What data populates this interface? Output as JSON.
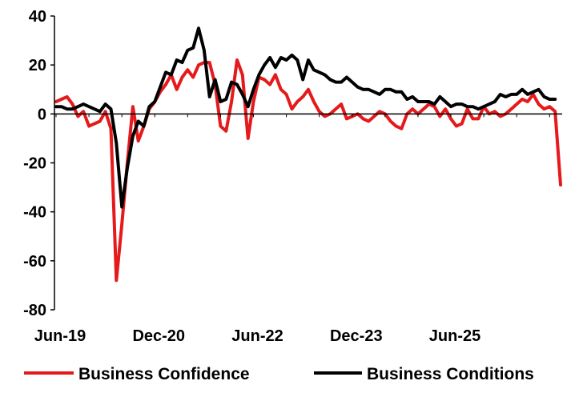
{
  "chart_data": {
    "type": "line",
    "title": "",
    "xlabel": "",
    "ylabel": "",
    "ylim": [
      -80,
      40
    ],
    "y_ticks": [
      40,
      20,
      0,
      -20,
      -40,
      -60,
      -80
    ],
    "y_tick_labels": [
      "40",
      "20",
      "0",
      "-20",
      "-40",
      "-60",
      "-80"
    ],
    "x_tick_labels": [
      "Jun-19",
      "Dec-20",
      "Jun-22",
      "Dec-23",
      "Jun-25"
    ],
    "x_tick_index": [
      0,
      18,
      36,
      54,
      72
    ],
    "grid": false,
    "legend_position": "bottom",
    "series": [
      {
        "name": "Business Confidence",
        "color": "#e41a1c",
        "values": [
          5,
          6,
          7,
          4,
          -1,
          1,
          -5,
          -4,
          -3,
          1,
          -6,
          -68,
          -45,
          -20,
          3,
          -11,
          -5,
          2,
          5,
          9,
          12,
          16,
          10,
          15,
          18,
          15,
          20,
          21,
          21,
          12,
          -5,
          -7,
          5,
          22,
          16,
          -10,
          5,
          15,
          14,
          12,
          16,
          10,
          8,
          2,
          5,
          7,
          10,
          5,
          1,
          -1,
          0,
          2,
          4,
          -2,
          -1,
          0,
          -2,
          -3,
          -1,
          1,
          0,
          -3,
          -5,
          -6,
          0,
          2,
          0,
          2,
          4,
          3,
          -1,
          2,
          -2,
          -5,
          -4,
          2,
          -2,
          -2,
          3,
          0,
          1,
          -1,
          0,
          2,
          4,
          6,
          5,
          8,
          4,
          2,
          3,
          1,
          -29
        ]
      },
      {
        "name": "Business Conditions",
        "color": "#000000",
        "values": [
          3,
          3,
          2,
          2,
          3,
          4,
          3,
          2,
          1,
          4,
          2,
          -12,
          -38,
          -22,
          -9,
          -3,
          -5,
          3,
          5,
          11,
          17,
          16,
          22,
          21,
          26,
          27,
          35,
          26,
          7,
          14,
          5,
          6,
          13,
          12,
          8,
          3,
          10,
          16,
          20,
          23,
          19,
          23,
          22,
          24,
          22,
          14,
          22,
          18,
          17,
          16,
          14,
          13,
          13,
          15,
          13,
          11,
          10,
          10,
          9,
          8,
          10,
          10,
          9,
          9,
          6,
          7,
          5,
          5,
          5,
          4,
          7,
          5,
          3,
          4,
          4,
          3,
          3,
          2,
          3,
          4,
          5,
          8,
          7,
          8,
          8,
          10,
          8,
          9,
          10,
          7,
          6,
          6
        ]
      }
    ]
  }
}
